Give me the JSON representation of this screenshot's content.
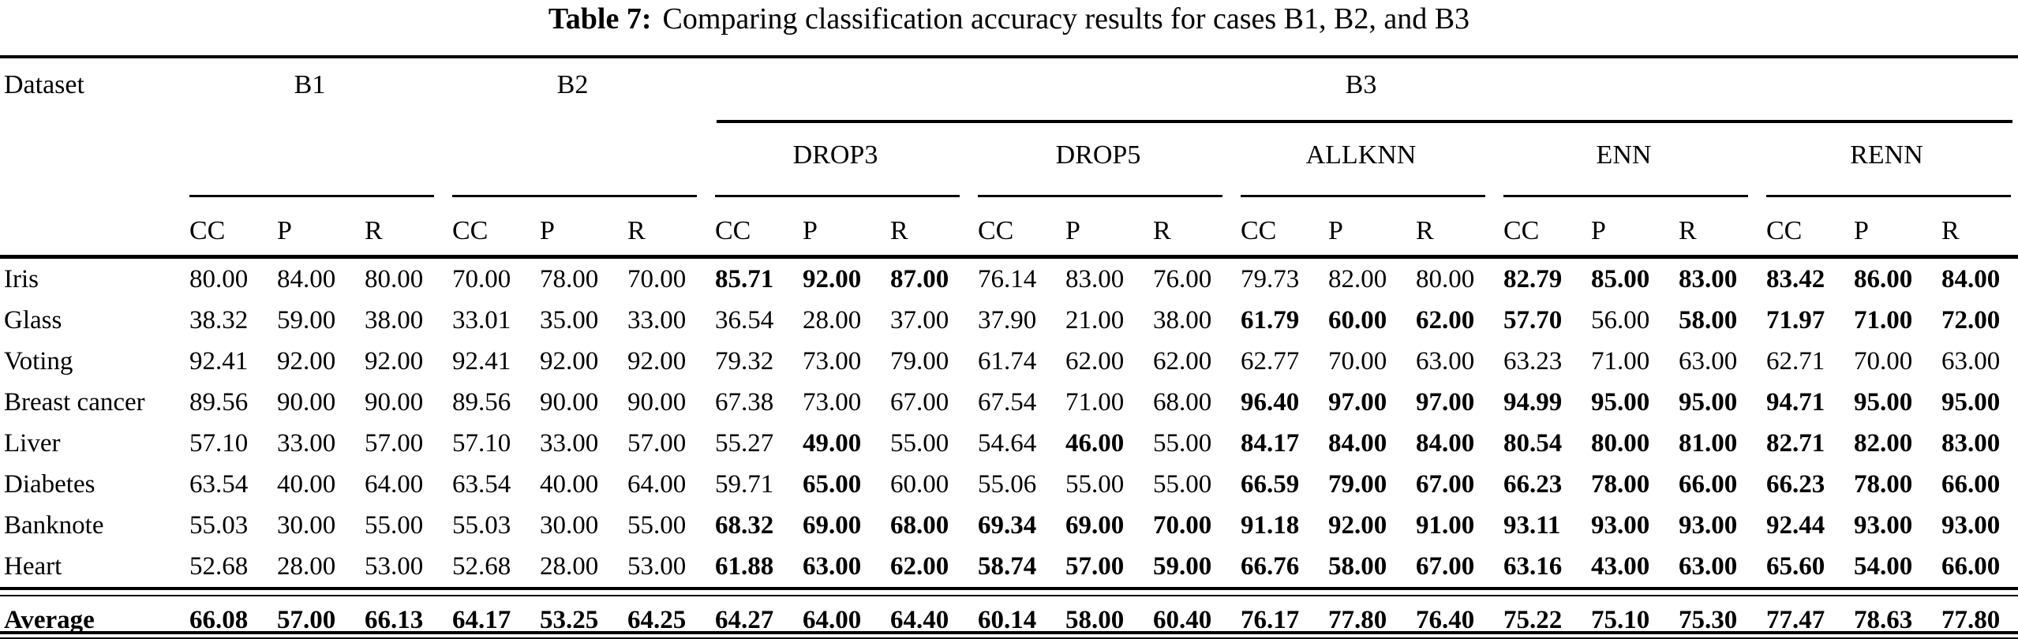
{
  "title": {
    "prefix": "Table 7:",
    "text": "Comparing classification accuracy results for cases B1, B2, and B3"
  },
  "table": {
    "corner_header": "Dataset",
    "top_groups": {
      "b1": "B1",
      "b2": "B2",
      "b3": "B3"
    },
    "b3_subgroups": [
      "DROP3",
      "DROP5",
      "ALLKNN",
      "ENN",
      "RENN"
    ],
    "metrics": [
      "CC",
      "P",
      "R"
    ],
    "rows": [
      {
        "label": "Iris",
        "values": [
          "80.00",
          "84.00",
          "80.00",
          "70.00",
          "78.00",
          "70.00",
          "85.71",
          "92.00",
          "87.00",
          "76.14",
          "83.00",
          "76.00",
          "79.73",
          "82.00",
          "80.00",
          "82.79",
          "85.00",
          "83.00",
          "83.42",
          "86.00",
          "84.00"
        ],
        "bold": [
          0,
          0,
          0,
          0,
          0,
          0,
          1,
          1,
          1,
          0,
          0,
          0,
          0,
          0,
          0,
          1,
          1,
          1,
          1,
          1,
          1
        ]
      },
      {
        "label": "Glass",
        "values": [
          "38.32",
          "59.00",
          "38.00",
          "33.01",
          "35.00",
          "33.00",
          "36.54",
          "28.00",
          "37.00",
          "37.90",
          "21.00",
          "38.00",
          "61.79",
          "60.00",
          "62.00",
          "57.70",
          "56.00",
          "58.00",
          "71.97",
          "71.00",
          "72.00"
        ],
        "bold": [
          0,
          0,
          0,
          0,
          0,
          0,
          0,
          0,
          0,
          0,
          0,
          0,
          1,
          1,
          1,
          1,
          0,
          1,
          1,
          1,
          1
        ]
      },
      {
        "label": "Voting",
        "values": [
          "92.41",
          "92.00",
          "92.00",
          "92.41",
          "92.00",
          "92.00",
          "79.32",
          "73.00",
          "79.00",
          "61.74",
          "62.00",
          "62.00",
          "62.77",
          "70.00",
          "63.00",
          "63.23",
          "71.00",
          "63.00",
          "62.71",
          "70.00",
          "63.00"
        ],
        "bold": [
          0,
          0,
          0,
          0,
          0,
          0,
          0,
          0,
          0,
          0,
          0,
          0,
          0,
          0,
          0,
          0,
          0,
          0,
          0,
          0,
          0
        ]
      },
      {
        "label": "Breast cancer",
        "values": [
          "89.56",
          "90.00",
          "90.00",
          "89.56",
          "90.00",
          "90.00",
          "67.38",
          "73.00",
          "67.00",
          "67.54",
          "71.00",
          "68.00",
          "96.40",
          "97.00",
          "97.00",
          "94.99",
          "95.00",
          "95.00",
          "94.71",
          "95.00",
          "95.00"
        ],
        "bold": [
          0,
          0,
          0,
          0,
          0,
          0,
          0,
          0,
          0,
          0,
          0,
          0,
          1,
          1,
          1,
          1,
          1,
          1,
          1,
          1,
          1
        ]
      },
      {
        "label": "Liver",
        "values": [
          "57.10",
          "33.00",
          "57.00",
          "57.10",
          "33.00",
          "57.00",
          "55.27",
          "49.00",
          "55.00",
          "54.64",
          "46.00",
          "55.00",
          "84.17",
          "84.00",
          "84.00",
          "80.54",
          "80.00",
          "81.00",
          "82.71",
          "82.00",
          "83.00"
        ],
        "bold": [
          0,
          0,
          0,
          0,
          0,
          0,
          0,
          1,
          0,
          0,
          1,
          0,
          1,
          1,
          1,
          1,
          1,
          1,
          1,
          1,
          1
        ]
      },
      {
        "label": "Diabetes",
        "values": [
          "63.54",
          "40.00",
          "64.00",
          "63.54",
          "40.00",
          "64.00",
          "59.71",
          "65.00",
          "60.00",
          "55.06",
          "55.00",
          "55.00",
          "66.59",
          "79.00",
          "67.00",
          "66.23",
          "78.00",
          "66.00",
          "66.23",
          "78.00",
          "66.00"
        ],
        "bold": [
          0,
          0,
          0,
          0,
          0,
          0,
          0,
          1,
          0,
          0,
          0,
          0,
          1,
          1,
          1,
          1,
          1,
          1,
          1,
          1,
          1
        ]
      },
      {
        "label": "Banknote",
        "values": [
          "55.03",
          "30.00",
          "55.00",
          "55.03",
          "30.00",
          "55.00",
          "68.32",
          "69.00",
          "68.00",
          "69.34",
          "69.00",
          "70.00",
          "91.18",
          "92.00",
          "91.00",
          "93.11",
          "93.00",
          "93.00",
          "92.44",
          "93.00",
          "93.00"
        ],
        "bold": [
          0,
          0,
          0,
          0,
          0,
          0,
          1,
          1,
          1,
          1,
          1,
          1,
          1,
          1,
          1,
          1,
          1,
          1,
          1,
          1,
          1
        ]
      },
      {
        "label": "Heart",
        "values": [
          "52.68",
          "28.00",
          "53.00",
          "52.68",
          "28.00",
          "53.00",
          "61.88",
          "63.00",
          "62.00",
          "58.74",
          "57.00",
          "59.00",
          "66.76",
          "58.00",
          "67.00",
          "63.16",
          "43.00",
          "63.00",
          "65.60",
          "54.00",
          "66.00"
        ],
        "bold": [
          0,
          0,
          0,
          0,
          0,
          0,
          1,
          1,
          1,
          1,
          1,
          1,
          1,
          1,
          1,
          1,
          1,
          1,
          1,
          1,
          1
        ]
      }
    ],
    "average_row": {
      "label": "Average",
      "values": [
        "66.08",
        "57.00",
        "66.13",
        "64.17",
        "53.25",
        "64.25",
        "64.27",
        "64.00",
        "64.40",
        "60.14",
        "58.00",
        "60.40",
        "76.17",
        "77.80",
        "76.40",
        "75.22",
        "75.10",
        "75.30",
        "77.47",
        "78.63",
        "77.80"
      ]
    }
  }
}
